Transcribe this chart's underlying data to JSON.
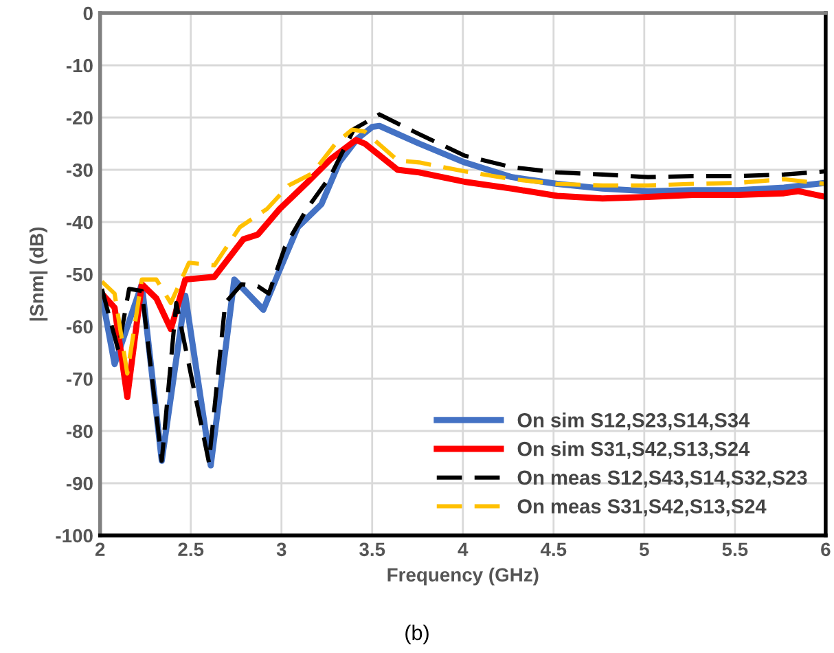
{
  "chart_data": {
    "type": "line",
    "xlabel": "Frequency (GHz)",
    "ylabel": "|Snm| (dB)",
    "xlim": [
      2,
      6
    ],
    "xticks": [
      2,
      2.5,
      3,
      3.5,
      4,
      4.5,
      5,
      5.5,
      6
    ],
    "ylim": [
      -100,
      0
    ],
    "yticks": [
      -100,
      -90,
      -80,
      -70,
      -60,
      -50,
      -40,
      -30,
      -20,
      -10,
      0
    ],
    "grid": true,
    "legend": "bottom right",
    "marker": "none",
    "annotations": [
      "(b)"
    ],
    "series": [
      {
        "name": "On sim S12,S23,S14,S34",
        "color": "#4472c4",
        "line_style": "solid",
        "x": [
          2.01,
          2.08,
          2.23,
          2.34,
          2.47,
          2.61,
          2.74,
          2.9,
          2.99,
          3.09,
          3.22,
          3.32,
          3.42,
          3.5,
          3.54,
          3.76,
          4.01,
          4.27,
          4.52,
          4.77,
          5.02,
          5.27,
          5.52,
          5.77,
          6
        ],
        "values": [
          -54.1,
          -67.2,
          -51.9,
          -85.7,
          -54.1,
          -86.6,
          -51,
          -56.8,
          -49.2,
          -41,
          -36.6,
          -28.5,
          -24,
          -21.8,
          -21.6,
          -25,
          -28.6,
          -31.4,
          -32.7,
          -33.6,
          -34.1,
          -33.9,
          -33.9,
          -33.4,
          -32.5
        ]
      },
      {
        "name": "On sim S31,S42,S13,S24",
        "color": "#ff0000",
        "line_style": "solid",
        "x": [
          2.01,
          2.08,
          2.15,
          2.23,
          2.31,
          2.39,
          2.47,
          2.63,
          2.79,
          2.87,
          2.99,
          3.14,
          3.27,
          3.41,
          3.46,
          3.64,
          3.76,
          4.01,
          4.27,
          4.52,
          4.77,
          5.02,
          5.27,
          5.52,
          5.77,
          5.85,
          6
        ],
        "values": [
          -53.7,
          -56.4,
          -73.5,
          -51.9,
          -54.6,
          -60.5,
          -51,
          -50.5,
          -43.3,
          -42.4,
          -37.5,
          -32.5,
          -28,
          -24.3,
          -25,
          -30,
          -30.5,
          -32.3,
          -33.6,
          -35,
          -35.5,
          -35.2,
          -34.8,
          -34.8,
          -34.5,
          -34.1,
          -35.2
        ]
      },
      {
        "name": "On meas S12,S43,S14,S32,S23",
        "color": "#000000",
        "line_style": "dashed",
        "x": [
          2.01,
          2.1,
          2.16,
          2.23,
          2.34,
          2.42,
          2.6,
          2.69,
          2.78,
          2.87,
          2.93,
          3.02,
          3.14,
          3.27,
          3.4,
          3.54,
          3.76,
          4.01,
          4.27,
          4.52,
          4.77,
          5.02,
          5.27,
          5.52,
          5.77,
          6
        ],
        "values": [
          -52.8,
          -64.5,
          -52.8,
          -53.2,
          -85.7,
          -55.5,
          -86,
          -55.5,
          -51.9,
          -52.3,
          -53.7,
          -44.7,
          -37.5,
          -31.2,
          -22.2,
          -19.4,
          -23.2,
          -27.3,
          -29.5,
          -30.5,
          -30.9,
          -31.4,
          -31.2,
          -31.2,
          -30.9,
          -30.3
        ]
      },
      {
        "name": "On meas S31,S42,S13,S24",
        "color": "#ffc000",
        "line_style": "dashed",
        "x": [
          2.01,
          2.08,
          2.15,
          2.23,
          2.31,
          2.39,
          2.49,
          2.63,
          2.77,
          2.92,
          3.04,
          3.17,
          3.3,
          3.39,
          3.46,
          3.64,
          3.76,
          4.01,
          4.27,
          4.52,
          4.77,
          5.02,
          5.27,
          5.52,
          5.77,
          6
        ],
        "values": [
          -51.4,
          -53.7,
          -69,
          -51,
          -51,
          -55.5,
          -47.8,
          -48.3,
          -41,
          -37.5,
          -33,
          -30.7,
          -24.9,
          -22.3,
          -22.7,
          -28.2,
          -28.6,
          -30.3,
          -31.8,
          -32.7,
          -33,
          -33,
          -32.7,
          -32.5,
          -31.8,
          -32.7
        ]
      }
    ]
  }
}
